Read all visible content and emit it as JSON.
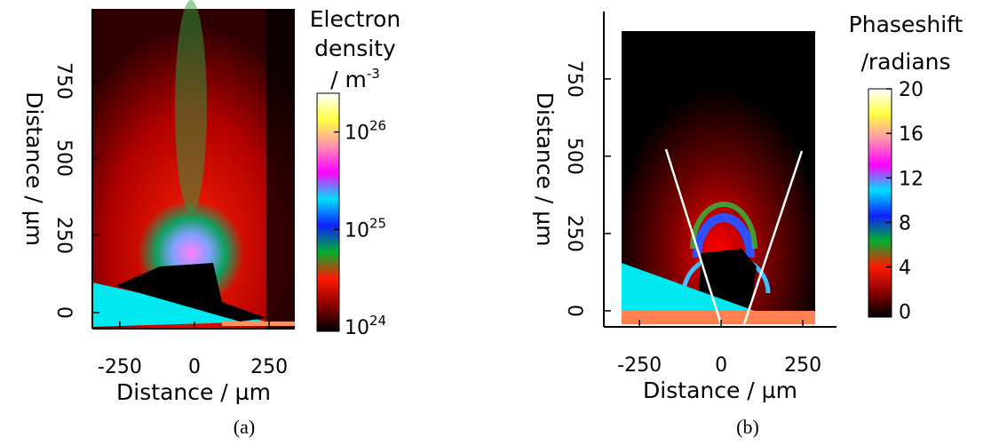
{
  "chart_data": [
    {
      "type": "heatmap",
      "x_label": "Distance / µm",
      "y_label": "Distance / µm",
      "xlim": [
        -342,
        336
      ],
      "ylim": [
        -52,
        983
      ],
      "xticks": [
        -250,
        0,
        250
      ],
      "yticks": [
        0,
        250,
        500,
        750
      ],
      "colorbar": {
        "label": [
          "Electron",
          "density",
          "/ m"
        ],
        "label_exponent": "-3",
        "log_scale": true,
        "clim": [
          9e+23,
          2.5e+26
        ],
        "ticks": [
          {
            "value": 1e+24,
            "label": "10",
            "exponent": "24"
          },
          {
            "value": 1e+25,
            "label": "10",
            "exponent": "25"
          },
          {
            "value": 1e+26,
            "label": "10",
            "exponent": "26"
          }
        ],
        "colormap": [
          "#000000",
          "#8b0000",
          "#ff1a00",
          "#00b030",
          "#1020ff",
          "#00e0ff",
          "#ff00ff",
          "#ff90b0",
          "#ffff40",
          "#ffffff"
        ]
      },
      "caption": "(a)"
    },
    {
      "type": "heatmap",
      "x_label": "Distance / µm",
      "y_label": "Distance / µm",
      "xlim": [
        -359,
        353
      ],
      "ylim": [
        -52,
        968
      ],
      "xticks": [
        -250,
        0,
        250
      ],
      "yticks": [
        0,
        250,
        500,
        750
      ],
      "colorbar": {
        "label": [
          "Phaseshift",
          "/radians"
        ],
        "log_scale": false,
        "clim": [
          -0.5,
          20
        ],
        "ticks": [
          0,
          4,
          8,
          12,
          16,
          20
        ],
        "colormap": [
          "#000000",
          "#8b0000",
          "#ff1a00",
          "#00b030",
          "#1020ff",
          "#00e0ff",
          "#ff00ff",
          "#ff90b0",
          "#ffff40",
          "#ffffff"
        ]
      },
      "caption": "(b)"
    }
  ]
}
